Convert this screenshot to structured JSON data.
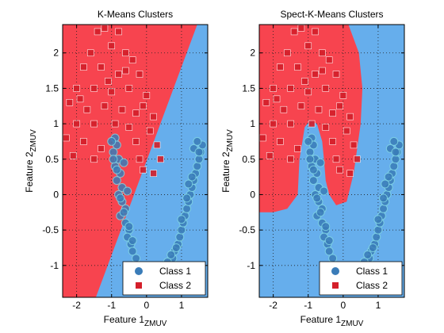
{
  "colors": {
    "class1_region": "#66aeec",
    "class2_region": "#f7444f",
    "class1_marker": "#3a7cb8",
    "class2_marker": "#d41f2a",
    "marker_edge_1": "#7fd3e3",
    "marker_edge_2": "#ffffff",
    "axes": "#000000",
    "grid": "#202020"
  },
  "chart_data": [
    {
      "type": "scatter",
      "title": "K-Means Clusters",
      "xlabel_main": "Feature 1",
      "xlabel_sub": "ZMUV",
      "ylabel_main": "Feature 2",
      "ylabel_sub": "ZMUV",
      "xlim": [
        -2.4,
        1.75
      ],
      "ylim": [
        -1.45,
        2.4
      ],
      "xticks": [
        -2,
        -1,
        0,
        1
      ],
      "yticks": [
        -1,
        -0.5,
        0,
        0.5,
        1,
        1.5,
        2
      ],
      "grid": true,
      "legend_position": "bottom-right",
      "boundary": {
        "description": "linear decision boundary; class 2 region above-left",
        "line": [
          [
            -1.45,
            -1.45
          ],
          [
            1.45,
            2.4
          ]
        ]
      },
      "legend": [
        {
          "label": "Class 1",
          "marker": "circle"
        },
        {
          "label": "Class 2",
          "marker": "square"
        }
      ]
    },
    {
      "type": "scatter",
      "title": "Spect-K-Means Clusters",
      "xlabel_main": "Feature 1",
      "xlabel_sub": "ZMUV",
      "ylabel_main": "Feature 2",
      "ylabel_sub": "ZMUV",
      "xlim": [
        -2.4,
        1.75
      ],
      "ylim": [
        -1.45,
        2.4
      ],
      "xticks": [
        -2,
        -1,
        0,
        1
      ],
      "yticks": [
        -1,
        -0.5,
        0,
        0.5,
        1,
        1.5,
        2
      ],
      "grid": true,
      "legend_position": "bottom-right",
      "boundary": {
        "description": "curved decision boundary wrapping around class 1 moon",
        "polygon": [
          [
            -2.4,
            2.4
          ],
          [
            0.15,
            2.4
          ],
          [
            0.45,
            2.0
          ],
          [
            0.55,
            1.5
          ],
          [
            0.5,
            1.0
          ],
          [
            0.3,
            0.3
          ],
          [
            0.1,
            -0.1
          ],
          [
            -0.2,
            -0.15
          ],
          [
            -0.4,
            0.0
          ],
          [
            -0.5,
            0.2
          ],
          [
            -0.55,
            0.5
          ],
          [
            -0.6,
            0.75
          ],
          [
            -0.75,
            1.0
          ],
          [
            -0.95,
            1.05
          ],
          [
            -1.1,
            0.95
          ],
          [
            -1.25,
            0.5
          ],
          [
            -1.3,
            0.0
          ],
          [
            -1.6,
            -0.2
          ],
          [
            -2.0,
            -0.25
          ],
          [
            -2.4,
            -0.25
          ]
        ]
      },
      "legend": [
        {
          "label": "Class 1",
          "marker": "circle"
        },
        {
          "label": "Class 2",
          "marker": "square"
        }
      ]
    }
  ],
  "points": {
    "class1": [
      [
        -0.9,
        0.8
      ],
      [
        -0.85,
        0.7
      ],
      [
        -0.95,
        0.6
      ],
      [
        -0.8,
        0.5
      ],
      [
        -0.9,
        0.4
      ],
      [
        -0.75,
        0.3
      ],
      [
        -0.85,
        0.2
      ],
      [
        -0.7,
        0.1
      ],
      [
        -0.8,
        0.0
      ],
      [
        -0.7,
        -0.1
      ],
      [
        -0.6,
        -0.2
      ],
      [
        -0.75,
        -0.3
      ],
      [
        -0.6,
        -0.4
      ],
      [
        -0.5,
        -0.5
      ],
      [
        -0.55,
        -0.6
      ],
      [
        -0.45,
        -0.7
      ],
      [
        -0.4,
        -0.8
      ],
      [
        -0.3,
        -0.9
      ],
      [
        -0.35,
        -1.0
      ],
      [
        -0.2,
        -1.1
      ],
      [
        -0.15,
        -1.2
      ],
      [
        -0.05,
        -1.25
      ],
      [
        0.05,
        -1.3
      ],
      [
        0.15,
        -1.35
      ],
      [
        0.25,
        -1.3
      ],
      [
        0.35,
        -1.2
      ],
      [
        0.45,
        -1.15
      ],
      [
        0.55,
        -1.05
      ],
      [
        0.65,
        -1.0
      ],
      [
        0.75,
        -0.9
      ],
      [
        0.8,
        -0.8
      ],
      [
        0.9,
        -0.7
      ],
      [
        0.95,
        -0.6
      ],
      [
        1.0,
        -0.5
      ],
      [
        1.05,
        -0.4
      ],
      [
        1.1,
        -0.3
      ],
      [
        1.15,
        -0.2
      ],
      [
        1.2,
        -0.1
      ],
      [
        1.25,
        0.0
      ],
      [
        1.3,
        0.1
      ],
      [
        1.35,
        0.2
      ],
      [
        1.4,
        0.3
      ],
      [
        1.45,
        0.4
      ],
      [
        1.5,
        0.5
      ],
      [
        1.55,
        0.6
      ],
      [
        1.6,
        0.7
      ],
      [
        1.45,
        0.75
      ],
      [
        1.35,
        0.65
      ],
      [
        -1.0,
        0.75
      ],
      [
        -0.95,
        0.5
      ],
      [
        -0.85,
        0.35
      ],
      [
        -0.75,
        -0.05
      ],
      [
        -0.65,
        -0.25
      ],
      [
        -0.5,
        -0.45
      ],
      [
        -0.4,
        -0.65
      ],
      [
        0.1,
        -1.15
      ],
      [
        0.3,
        -1.25
      ],
      [
        0.6,
        -0.95
      ],
      [
        0.85,
        -0.75
      ],
      [
        1.0,
        -0.35
      ],
      [
        1.15,
        -0.05
      ],
      [
        1.3,
        0.25
      ],
      [
        1.5,
        0.6
      ],
      [
        -0.55,
        0.05
      ],
      [
        -0.65,
        0.45
      ],
      [
        -0.25,
        -1.05
      ],
      [
        0.7,
        -0.85
      ],
      [
        1.2,
        0.15
      ]
    ],
    "class2": [
      [
        -1.4,
        2.3
      ],
      [
        -1.2,
        2.35
      ],
      [
        -0.8,
        2.3
      ],
      [
        -1.0,
        2.1
      ],
      [
        -1.6,
        2.0
      ],
      [
        -0.6,
        2.0
      ],
      [
        -0.4,
        1.9
      ],
      [
        -1.8,
        1.8
      ],
      [
        -1.3,
        1.8
      ],
      [
        -0.8,
        1.7
      ],
      [
        -0.2,
        1.7
      ],
      [
        -2.0,
        1.5
      ],
      [
        -1.5,
        1.5
      ],
      [
        -1.0,
        1.45
      ],
      [
        -0.5,
        1.5
      ],
      [
        0.0,
        1.4
      ],
      [
        -2.2,
        1.3
      ],
      [
        -1.7,
        1.2
      ],
      [
        -1.2,
        1.25
      ],
      [
        -0.7,
        1.2
      ],
      [
        -0.3,
        1.15
      ],
      [
        0.2,
        1.1
      ],
      [
        -2.0,
        1.0
      ],
      [
        -1.5,
        1.0
      ],
      [
        -0.5,
        0.95
      ],
      [
        0.1,
        0.9
      ],
      [
        -2.3,
        0.8
      ],
      [
        -1.8,
        0.75
      ],
      [
        -0.3,
        0.75
      ],
      [
        0.3,
        0.7
      ],
      [
        -2.1,
        0.55
      ],
      [
        -1.5,
        0.5
      ],
      [
        -0.2,
        0.5
      ],
      [
        0.4,
        0.5
      ],
      [
        -0.1,
        0.35
      ],
      [
        0.2,
        0.3
      ],
      [
        -0.6,
        1.75
      ],
      [
        -1.1,
        1.6
      ],
      [
        -1.9,
        1.35
      ],
      [
        -0.9,
        1.0
      ],
      [
        -1.3,
        0.65
      ],
      [
        -0.1,
        1.25
      ]
    ]
  }
}
